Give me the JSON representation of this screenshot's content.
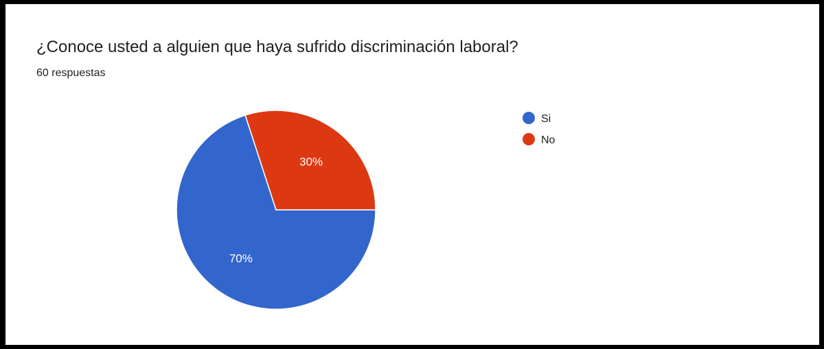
{
  "header": {
    "title": "¿Conoce usted a alguien que haya sufrido discriminación laboral?",
    "response_count": "60 respuestas"
  },
  "chart_data": {
    "type": "pie",
    "categories": [
      "Si",
      "No"
    ],
    "values": [
      70,
      30
    ],
    "labels": [
      "70%",
      "30%"
    ],
    "colors": [
      "#3366cc",
      "#dc3912"
    ],
    "legend_position": "right"
  }
}
